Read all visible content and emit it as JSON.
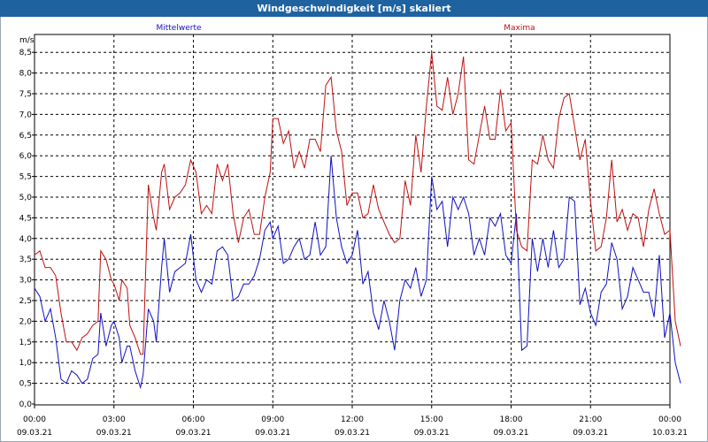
{
  "chart_data": {
    "type": "line",
    "title": "Windgeschwindigkeit [m/s] skaliert",
    "ylabel": "m/s",
    "ylim": [
      0,
      8.75
    ],
    "yticks": [
      "0,0",
      "0,5",
      "1,0",
      "1,5",
      "2,0",
      "2,5",
      "3,0",
      "3,5",
      "4,0",
      "4,5",
      "5,0",
      "5,5",
      "6,0",
      "6,5",
      "7,0",
      "7,5",
      "8,0",
      "8,5"
    ],
    "xticks": [
      {
        "time": "00:00",
        "date": "09.03.21"
      },
      {
        "time": "03:00",
        "date": "09.03.21"
      },
      {
        "time": "06:00",
        "date": "09.03.21"
      },
      {
        "time": "09:00",
        "date": "09.03.21"
      },
      {
        "time": "12:00",
        "date": "09.03.21"
      },
      {
        "time": "15:00",
        "date": "09.03.21"
      },
      {
        "time": "18:00",
        "date": "09.03.21"
      },
      {
        "time": "21:00",
        "date": "09.03.21"
      },
      {
        "time": "00:00",
        "date": "10.03.21"
      }
    ],
    "grid": true,
    "x_unit": "hours",
    "series": [
      {
        "name": "Mittelwerte",
        "color": "#1010c0",
        "points": [
          [
            0,
            2.8
          ],
          [
            0.2,
            2.6
          ],
          [
            0.4,
            2.0
          ],
          [
            0.6,
            2.3
          ],
          [
            0.8,
            1.6
          ],
          [
            1.0,
            0.6
          ],
          [
            1.2,
            0.5
          ],
          [
            1.4,
            0.8
          ],
          [
            1.6,
            0.7
          ],
          [
            1.8,
            0.5
          ],
          [
            2.0,
            0.6
          ],
          [
            2.2,
            1.1
          ],
          [
            2.4,
            1.2
          ],
          [
            2.5,
            2.2
          ],
          [
            2.7,
            1.4
          ],
          [
            2.9,
            1.9
          ],
          [
            3.0,
            2.0
          ],
          [
            3.2,
            1.6
          ],
          [
            3.3,
            1.0
          ],
          [
            3.5,
            1.4
          ],
          [
            3.6,
            1.4
          ],
          [
            3.8,
            0.8
          ],
          [
            4.0,
            0.4
          ],
          [
            4.1,
            0.7
          ],
          [
            4.3,
            2.3
          ],
          [
            4.5,
            2.0
          ],
          [
            4.6,
            1.5
          ],
          [
            4.8,
            3.3
          ],
          [
            4.9,
            4.0
          ],
          [
            5.1,
            2.7
          ],
          [
            5.3,
            3.2
          ],
          [
            5.5,
            3.3
          ],
          [
            5.7,
            3.4
          ],
          [
            5.9,
            4.1
          ],
          [
            6.1,
            3.0
          ],
          [
            6.3,
            2.7
          ],
          [
            6.5,
            3.0
          ],
          [
            6.7,
            2.9
          ],
          [
            6.9,
            3.7
          ],
          [
            7.1,
            3.8
          ],
          [
            7.3,
            3.6
          ],
          [
            7.5,
            2.5
          ],
          [
            7.7,
            2.6
          ],
          [
            7.9,
            2.9
          ],
          [
            8.1,
            2.9
          ],
          [
            8.3,
            3.1
          ],
          [
            8.5,
            3.5
          ],
          [
            8.7,
            4.2
          ],
          [
            8.9,
            4.4
          ],
          [
            9.0,
            4.0
          ],
          [
            9.2,
            4.3
          ],
          [
            9.4,
            3.4
          ],
          [
            9.6,
            3.5
          ],
          [
            9.8,
            3.8
          ],
          [
            10.0,
            4.0
          ],
          [
            10.2,
            3.5
          ],
          [
            10.4,
            3.6
          ],
          [
            10.6,
            4.4
          ],
          [
            10.8,
            3.6
          ],
          [
            11.0,
            3.8
          ],
          [
            11.2,
            6.0
          ],
          [
            11.4,
            4.5
          ],
          [
            11.6,
            3.8
          ],
          [
            11.8,
            3.4
          ],
          [
            12.0,
            3.6
          ],
          [
            12.2,
            4.2
          ],
          [
            12.4,
            2.9
          ],
          [
            12.6,
            3.2
          ],
          [
            12.8,
            2.2
          ],
          [
            13.0,
            1.8
          ],
          [
            13.2,
            2.5
          ],
          [
            13.4,
            2.0
          ],
          [
            13.6,
            1.3
          ],
          [
            13.8,
            2.5
          ],
          [
            14.0,
            3.0
          ],
          [
            14.2,
            2.8
          ],
          [
            14.4,
            3.3
          ],
          [
            14.6,
            2.6
          ],
          [
            14.8,
            3.0
          ],
          [
            15.0,
            5.5
          ],
          [
            15.2,
            4.7
          ],
          [
            15.4,
            4.9
          ],
          [
            15.6,
            3.8
          ],
          [
            15.8,
            5.0
          ],
          [
            16.0,
            4.7
          ],
          [
            16.2,
            5.0
          ],
          [
            16.4,
            4.6
          ],
          [
            16.6,
            3.6
          ],
          [
            16.8,
            4.0
          ],
          [
            17.0,
            3.6
          ],
          [
            17.2,
            4.5
          ],
          [
            17.4,
            4.3
          ],
          [
            17.6,
            4.6
          ],
          [
            17.8,
            3.6
          ],
          [
            18.0,
            3.4
          ],
          [
            18.2,
            4.6
          ],
          [
            18.4,
            1.3
          ],
          [
            18.6,
            1.4
          ],
          [
            18.8,
            4.0
          ],
          [
            19.0,
            3.2
          ],
          [
            19.2,
            4.0
          ],
          [
            19.4,
            3.3
          ],
          [
            19.6,
            4.2
          ],
          [
            19.8,
            3.3
          ],
          [
            20.0,
            3.5
          ],
          [
            20.2,
            5.0
          ],
          [
            20.4,
            4.9
          ],
          [
            20.6,
            2.4
          ],
          [
            20.8,
            2.8
          ],
          [
            21.0,
            2.2
          ],
          [
            21.2,
            1.9
          ],
          [
            21.4,
            2.7
          ],
          [
            21.6,
            2.9
          ],
          [
            21.8,
            3.9
          ],
          [
            22.0,
            3.5
          ],
          [
            22.2,
            2.3
          ],
          [
            22.4,
            2.6
          ],
          [
            22.6,
            3.3
          ],
          [
            22.8,
            3.0
          ],
          [
            23.0,
            2.7
          ],
          [
            23.2,
            2.7
          ],
          [
            23.4,
            2.1
          ],
          [
            23.6,
            3.6
          ],
          [
            23.8,
            1.6
          ],
          [
            24.0,
            2.2
          ],
          [
            24.2,
            1.0
          ],
          [
            24.4,
            0.5
          ]
        ]
      },
      {
        "name": "Maxima",
        "color": "#c01010",
        "points": [
          [
            0,
            3.6
          ],
          [
            0.2,
            3.7
          ],
          [
            0.4,
            3.3
          ],
          [
            0.6,
            3.3
          ],
          [
            0.8,
            3.1
          ],
          [
            1.0,
            2.2
          ],
          [
            1.2,
            1.5
          ],
          [
            1.4,
            1.5
          ],
          [
            1.6,
            1.3
          ],
          [
            1.8,
            1.6
          ],
          [
            2.0,
            1.7
          ],
          [
            2.2,
            1.9
          ],
          [
            2.4,
            2.0
          ],
          [
            2.5,
            3.7
          ],
          [
            2.7,
            3.5
          ],
          [
            2.9,
            3.0
          ],
          [
            3.0,
            2.9
          ],
          [
            3.2,
            2.5
          ],
          [
            3.3,
            3.0
          ],
          [
            3.5,
            2.8
          ],
          [
            3.6,
            1.9
          ],
          [
            3.8,
            1.6
          ],
          [
            4.0,
            1.2
          ],
          [
            4.1,
            1.2
          ],
          [
            4.3,
            5.3
          ],
          [
            4.5,
            4.5
          ],
          [
            4.6,
            4.2
          ],
          [
            4.8,
            5.6
          ],
          [
            4.9,
            5.8
          ],
          [
            5.1,
            4.7
          ],
          [
            5.3,
            5.0
          ],
          [
            5.5,
            5.1
          ],
          [
            5.7,
            5.3
          ],
          [
            5.9,
            5.9
          ],
          [
            6.1,
            5.6
          ],
          [
            6.3,
            4.6
          ],
          [
            6.5,
            4.8
          ],
          [
            6.7,
            4.6
          ],
          [
            6.9,
            5.8
          ],
          [
            7.1,
            5.4
          ],
          [
            7.3,
            5.8
          ],
          [
            7.5,
            4.6
          ],
          [
            7.7,
            3.9
          ],
          [
            7.9,
            4.5
          ],
          [
            8.1,
            4.7
          ],
          [
            8.3,
            4.1
          ],
          [
            8.5,
            4.1
          ],
          [
            8.7,
            5.0
          ],
          [
            8.9,
            5.6
          ],
          [
            9.0,
            6.9
          ],
          [
            9.2,
            6.9
          ],
          [
            9.4,
            6.3
          ],
          [
            9.6,
            6.6
          ],
          [
            9.8,
            5.7
          ],
          [
            10.0,
            6.1
          ],
          [
            10.2,
            5.7
          ],
          [
            10.4,
            6.4
          ],
          [
            10.6,
            6.4
          ],
          [
            10.8,
            6.1
          ],
          [
            11.0,
            7.7
          ],
          [
            11.2,
            7.9
          ],
          [
            11.4,
            6.6
          ],
          [
            11.6,
            6.1
          ],
          [
            11.8,
            4.8
          ],
          [
            12.0,
            5.1
          ],
          [
            12.2,
            5.1
          ],
          [
            12.4,
            4.5
          ],
          [
            12.6,
            4.6
          ],
          [
            12.8,
            5.3
          ],
          [
            13.0,
            4.7
          ],
          [
            13.2,
            4.4
          ],
          [
            13.4,
            4.1
          ],
          [
            13.6,
            3.9
          ],
          [
            13.8,
            4.0
          ],
          [
            14.0,
            5.4
          ],
          [
            14.2,
            4.8
          ],
          [
            14.4,
            6.5
          ],
          [
            14.6,
            5.6
          ],
          [
            14.8,
            7.2
          ],
          [
            15.0,
            8.5
          ],
          [
            15.2,
            7.2
          ],
          [
            15.4,
            7.1
          ],
          [
            15.6,
            7.9
          ],
          [
            15.8,
            7.0
          ],
          [
            16.0,
            7.5
          ],
          [
            16.2,
            8.4
          ],
          [
            16.4,
            5.9
          ],
          [
            16.6,
            5.8
          ],
          [
            16.8,
            6.5
          ],
          [
            17.0,
            7.2
          ],
          [
            17.2,
            6.4
          ],
          [
            17.4,
            6.4
          ],
          [
            17.6,
            7.6
          ],
          [
            17.8,
            6.6
          ],
          [
            18.0,
            6.8
          ],
          [
            18.2,
            4.2
          ],
          [
            18.4,
            3.8
          ],
          [
            18.6,
            3.7
          ],
          [
            18.8,
            5.9
          ],
          [
            19.0,
            5.8
          ],
          [
            19.2,
            6.5
          ],
          [
            19.4,
            5.9
          ],
          [
            19.6,
            5.7
          ],
          [
            19.8,
            6.9
          ],
          [
            20.0,
            7.4
          ],
          [
            20.2,
            7.5
          ],
          [
            20.4,
            6.7
          ],
          [
            20.6,
            5.9
          ],
          [
            20.8,
            6.4
          ],
          [
            21.0,
            4.9
          ],
          [
            21.2,
            3.7
          ],
          [
            21.4,
            3.8
          ],
          [
            21.6,
            4.5
          ],
          [
            21.8,
            5.9
          ],
          [
            22.0,
            4.4
          ],
          [
            22.2,
            4.7
          ],
          [
            22.4,
            4.2
          ],
          [
            22.6,
            4.6
          ],
          [
            22.8,
            4.5
          ],
          [
            23.0,
            3.8
          ],
          [
            23.2,
            4.7
          ],
          [
            23.4,
            5.2
          ],
          [
            23.6,
            4.6
          ],
          [
            23.8,
            4.1
          ],
          [
            24.0,
            4.2
          ],
          [
            24.2,
            2.0
          ],
          [
            24.4,
            1.4
          ]
        ]
      }
    ]
  }
}
